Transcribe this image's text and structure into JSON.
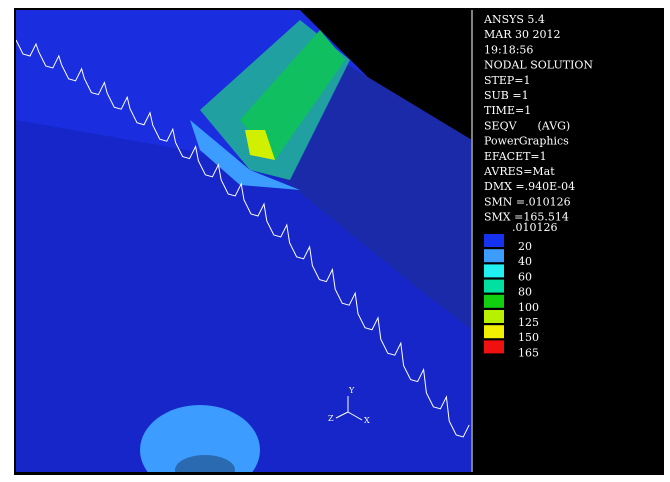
{
  "info_panel": {
    "lines": [
      "ANSYS 5.4",
      "MAR 30 2012",
      "19:18:56",
      "NODAL SOLUTION",
      "STEP=1",
      "SUB =1",
      "TIME=1",
      "SEQV      (AVG)",
      "PowerGraphics",
      "EFACET=1",
      "AVRES=Mat",
      "DMX =.940E-04",
      "SMN =.010126",
      "SMX =165.514"
    ]
  },
  "legend": {
    "min_label": ".010126",
    "entries": [
      {
        "label": "20",
        "color": "#1432f0"
      },
      {
        "label": "40",
        "color": "#3c9cff"
      },
      {
        "label": "60",
        "color": "#20f0f0"
      },
      {
        "label": "80",
        "color": "#00e0a0"
      },
      {
        "label": "100",
        "color": "#10d010"
      },
      {
        "label": "125",
        "color": "#b8f000"
      },
      {
        "label": "150",
        "color": "#f0f000"
      },
      {
        "label": "165",
        "color": "#f01010"
      }
    ]
  },
  "triad": {
    "x": "X",
    "y": "Y",
    "z": "Z"
  }
}
